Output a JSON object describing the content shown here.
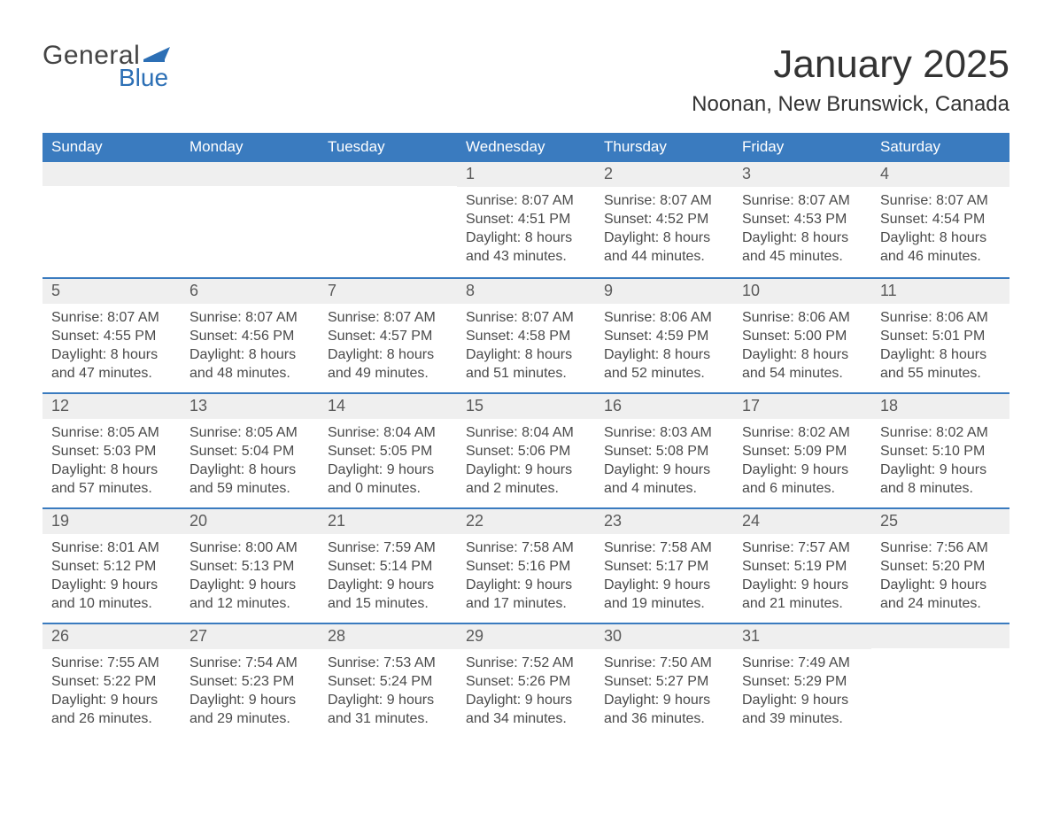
{
  "logo": {
    "text1": "General",
    "text2": "Blue",
    "flag_color": "#2c6fb5"
  },
  "title": "January 2025",
  "location": "Noonan, New Brunswick, Canada",
  "colors": {
    "header_blue": "#3a7bbf",
    "accent_blue": "#2c6fb5",
    "date_bg": "#efefef",
    "text_dark": "#4a4a4a",
    "divider": "#3a7bbf",
    "background": "#ffffff"
  },
  "typography": {
    "title_fontsize": 44,
    "location_fontsize": 24,
    "dow_fontsize": 17,
    "date_fontsize": 18,
    "body_fontsize": 16,
    "font_family": "Arial"
  },
  "days_of_week": [
    "Sunday",
    "Monday",
    "Tuesday",
    "Wednesday",
    "Thursday",
    "Friday",
    "Saturday"
  ],
  "weeks": [
    [
      {
        "date": "",
        "sunrise": "",
        "sunset": "",
        "daylight": ""
      },
      {
        "date": "",
        "sunrise": "",
        "sunset": "",
        "daylight": ""
      },
      {
        "date": "",
        "sunrise": "",
        "sunset": "",
        "daylight": ""
      },
      {
        "date": "1",
        "sunrise": "Sunrise: 8:07 AM",
        "sunset": "Sunset: 4:51 PM",
        "daylight": "Daylight: 8 hours and 43 minutes."
      },
      {
        "date": "2",
        "sunrise": "Sunrise: 8:07 AM",
        "sunset": "Sunset: 4:52 PM",
        "daylight": "Daylight: 8 hours and 44 minutes."
      },
      {
        "date": "3",
        "sunrise": "Sunrise: 8:07 AM",
        "sunset": "Sunset: 4:53 PM",
        "daylight": "Daylight: 8 hours and 45 minutes."
      },
      {
        "date": "4",
        "sunrise": "Sunrise: 8:07 AM",
        "sunset": "Sunset: 4:54 PM",
        "daylight": "Daylight: 8 hours and 46 minutes."
      }
    ],
    [
      {
        "date": "5",
        "sunrise": "Sunrise: 8:07 AM",
        "sunset": "Sunset: 4:55 PM",
        "daylight": "Daylight: 8 hours and 47 minutes."
      },
      {
        "date": "6",
        "sunrise": "Sunrise: 8:07 AM",
        "sunset": "Sunset: 4:56 PM",
        "daylight": "Daylight: 8 hours and 48 minutes."
      },
      {
        "date": "7",
        "sunrise": "Sunrise: 8:07 AM",
        "sunset": "Sunset: 4:57 PM",
        "daylight": "Daylight: 8 hours and 49 minutes."
      },
      {
        "date": "8",
        "sunrise": "Sunrise: 8:07 AM",
        "sunset": "Sunset: 4:58 PM",
        "daylight": "Daylight: 8 hours and 51 minutes."
      },
      {
        "date": "9",
        "sunrise": "Sunrise: 8:06 AM",
        "sunset": "Sunset: 4:59 PM",
        "daylight": "Daylight: 8 hours and 52 minutes."
      },
      {
        "date": "10",
        "sunrise": "Sunrise: 8:06 AM",
        "sunset": "Sunset: 5:00 PM",
        "daylight": "Daylight: 8 hours and 54 minutes."
      },
      {
        "date": "11",
        "sunrise": "Sunrise: 8:06 AM",
        "sunset": "Sunset: 5:01 PM",
        "daylight": "Daylight: 8 hours and 55 minutes."
      }
    ],
    [
      {
        "date": "12",
        "sunrise": "Sunrise: 8:05 AM",
        "sunset": "Sunset: 5:03 PM",
        "daylight": "Daylight: 8 hours and 57 minutes."
      },
      {
        "date": "13",
        "sunrise": "Sunrise: 8:05 AM",
        "sunset": "Sunset: 5:04 PM",
        "daylight": "Daylight: 8 hours and 59 minutes."
      },
      {
        "date": "14",
        "sunrise": "Sunrise: 8:04 AM",
        "sunset": "Sunset: 5:05 PM",
        "daylight": "Daylight: 9 hours and 0 minutes."
      },
      {
        "date": "15",
        "sunrise": "Sunrise: 8:04 AM",
        "sunset": "Sunset: 5:06 PM",
        "daylight": "Daylight: 9 hours and 2 minutes."
      },
      {
        "date": "16",
        "sunrise": "Sunrise: 8:03 AM",
        "sunset": "Sunset: 5:08 PM",
        "daylight": "Daylight: 9 hours and 4 minutes."
      },
      {
        "date": "17",
        "sunrise": "Sunrise: 8:02 AM",
        "sunset": "Sunset: 5:09 PM",
        "daylight": "Daylight: 9 hours and 6 minutes."
      },
      {
        "date": "18",
        "sunrise": "Sunrise: 8:02 AM",
        "sunset": "Sunset: 5:10 PM",
        "daylight": "Daylight: 9 hours and 8 minutes."
      }
    ],
    [
      {
        "date": "19",
        "sunrise": "Sunrise: 8:01 AM",
        "sunset": "Sunset: 5:12 PM",
        "daylight": "Daylight: 9 hours and 10 minutes."
      },
      {
        "date": "20",
        "sunrise": "Sunrise: 8:00 AM",
        "sunset": "Sunset: 5:13 PM",
        "daylight": "Daylight: 9 hours and 12 minutes."
      },
      {
        "date": "21",
        "sunrise": "Sunrise: 7:59 AM",
        "sunset": "Sunset: 5:14 PM",
        "daylight": "Daylight: 9 hours and 15 minutes."
      },
      {
        "date": "22",
        "sunrise": "Sunrise: 7:58 AM",
        "sunset": "Sunset: 5:16 PM",
        "daylight": "Daylight: 9 hours and 17 minutes."
      },
      {
        "date": "23",
        "sunrise": "Sunrise: 7:58 AM",
        "sunset": "Sunset: 5:17 PM",
        "daylight": "Daylight: 9 hours and 19 minutes."
      },
      {
        "date": "24",
        "sunrise": "Sunrise: 7:57 AM",
        "sunset": "Sunset: 5:19 PM",
        "daylight": "Daylight: 9 hours and 21 minutes."
      },
      {
        "date": "25",
        "sunrise": "Sunrise: 7:56 AM",
        "sunset": "Sunset: 5:20 PM",
        "daylight": "Daylight: 9 hours and 24 minutes."
      }
    ],
    [
      {
        "date": "26",
        "sunrise": "Sunrise: 7:55 AM",
        "sunset": "Sunset: 5:22 PM",
        "daylight": "Daylight: 9 hours and 26 minutes."
      },
      {
        "date": "27",
        "sunrise": "Sunrise: 7:54 AM",
        "sunset": "Sunset: 5:23 PM",
        "daylight": "Daylight: 9 hours and 29 minutes."
      },
      {
        "date": "28",
        "sunrise": "Sunrise: 7:53 AM",
        "sunset": "Sunset: 5:24 PM",
        "daylight": "Daylight: 9 hours and 31 minutes."
      },
      {
        "date": "29",
        "sunrise": "Sunrise: 7:52 AM",
        "sunset": "Sunset: 5:26 PM",
        "daylight": "Daylight: 9 hours and 34 minutes."
      },
      {
        "date": "30",
        "sunrise": "Sunrise: 7:50 AM",
        "sunset": "Sunset: 5:27 PM",
        "daylight": "Daylight: 9 hours and 36 minutes."
      },
      {
        "date": "31",
        "sunrise": "Sunrise: 7:49 AM",
        "sunset": "Sunset: 5:29 PM",
        "daylight": "Daylight: 9 hours and 39 minutes."
      },
      {
        "date": "",
        "sunrise": "",
        "sunset": "",
        "daylight": ""
      }
    ]
  ]
}
